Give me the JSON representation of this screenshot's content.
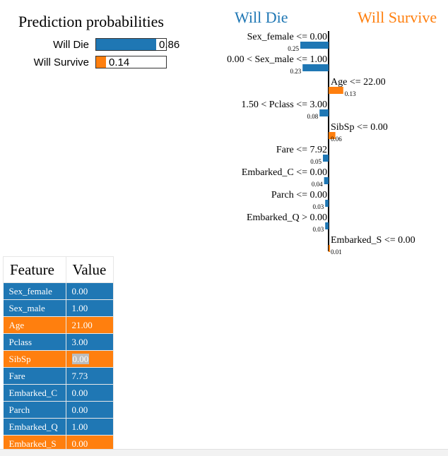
{
  "prediction": {
    "title": "Prediction probabilities",
    "rows": [
      {
        "label": "Will Die",
        "value": 0.86,
        "display": "0.86",
        "color": "#1f77b4"
      },
      {
        "label": "Will Survive",
        "value": 0.14,
        "display": "0.14",
        "color": "#ff7f0e"
      }
    ]
  },
  "explanation": {
    "negative_class": "Will Die",
    "positive_class": "Will Survive",
    "negative_color": "#1f77b4",
    "positive_color": "#ff7f0e"
  },
  "chart_data": {
    "type": "bar",
    "orientation": "horizontal",
    "categories": [
      "Sex_female <= 0.00",
      "0.00 < Sex_male <= 1.00",
      "Age <= 22.00",
      "1.50 < Pclass <= 3.00",
      "SibSp <= 0.00",
      "Fare <= 7.92",
      "Embarked_C <= 0.00",
      "Parch <= 0.00",
      "Embarked_Q > 0.00",
      "Embarked_S <= 0.00"
    ],
    "values": [
      -0.25,
      -0.23,
      0.13,
      -0.08,
      0.06,
      -0.05,
      -0.04,
      -0.03,
      -0.03,
      0.01
    ],
    "value_labels": [
      "0.25",
      "0.23",
      "0.13",
      "0.08",
      "0.06",
      "0.05",
      "0.04",
      "0.03",
      "0.03",
      "0.01"
    ],
    "series": [
      {
        "name": "Will Die",
        "color": "#1f77b4"
      },
      {
        "name": "Will Survive",
        "color": "#ff7f0e"
      }
    ]
  },
  "table": {
    "headers": [
      "Feature",
      "Value"
    ],
    "rows": [
      {
        "feature": "Sex_female",
        "value": "0.00",
        "color": "#1f77b4",
        "highlight": false
      },
      {
        "feature": "Sex_male",
        "value": "1.00",
        "color": "#1f77b4",
        "highlight": false
      },
      {
        "feature": "Age",
        "value": "21.00",
        "color": "#ff7f0e",
        "highlight": false
      },
      {
        "feature": "Pclass",
        "value": "3.00",
        "color": "#1f77b4",
        "highlight": false
      },
      {
        "feature": "SibSp",
        "value": "0.00",
        "color": "#ff7f0e",
        "highlight": true
      },
      {
        "feature": "Fare",
        "value": "7.73",
        "color": "#1f77b4",
        "highlight": false
      },
      {
        "feature": "Embarked_C",
        "value": "0.00",
        "color": "#1f77b4",
        "highlight": false
      },
      {
        "feature": "Parch",
        "value": "0.00",
        "color": "#1f77b4",
        "highlight": false
      },
      {
        "feature": "Embarked_Q",
        "value": "1.00",
        "color": "#1f77b4",
        "highlight": false
      },
      {
        "feature": "Embarked_S",
        "value": "0.00",
        "color": "#ff7f0e",
        "highlight": false
      }
    ]
  }
}
